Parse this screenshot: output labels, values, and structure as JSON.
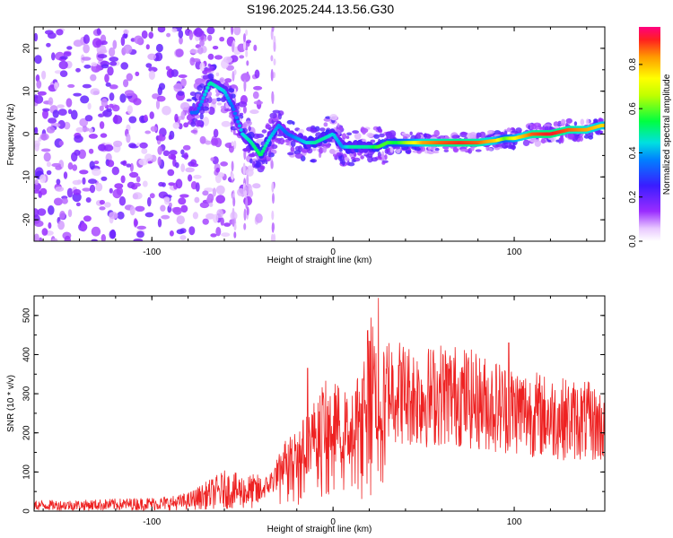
{
  "title": "S196.2025.244.13.56.G30",
  "colors": {
    "axis": "#000000",
    "snr_line": "#ee2222"
  },
  "colorbar": {
    "label": "Normalized spectral amplitude",
    "ticks": [
      "0.0",
      "0.2",
      "0.4",
      "0.6",
      "0.8"
    ],
    "tick_values": [
      0.0,
      0.2,
      0.4,
      0.6,
      0.8
    ],
    "range": [
      0.0,
      0.97
    ],
    "scale": "rainbow (violet to red)"
  },
  "chart_data": [
    {
      "type": "heatmap",
      "title": "S196.2025.244.13.56.G30",
      "xlabel": "Height of straight line (km)",
      "ylabel": "Frequency (Hz)",
      "xlim": [
        -165,
        150
      ],
      "ylim": [
        -25,
        25
      ],
      "x_ticks": [
        -100,
        0,
        100
      ],
      "x_tick_labels": [
        "-100",
        "0",
        "100"
      ],
      "y_ticks": [
        -20,
        -10,
        0,
        10,
        20
      ],
      "y_tick_labels": [
        "-20",
        "-10",
        "0",
        "10",
        "20"
      ],
      "ridge": {
        "description": "peak spectral amplitude track",
        "x": [
          -75,
          -68,
          -60,
          -55,
          -50,
          -45,
          -40,
          -35,
          -30,
          -25,
          -20,
          -15,
          -10,
          -5,
          0,
          5,
          10,
          15,
          20,
          25,
          30,
          35,
          40,
          50,
          60,
          70,
          80,
          90,
          95,
          100,
          110,
          120,
          130,
          140,
          148
        ],
        "y": [
          5,
          12,
          10,
          6,
          0,
          -2,
          -5,
          -1,
          2,
          0,
          -1,
          -2,
          -2,
          -1,
          0,
          -3,
          -3,
          -3,
          -3,
          -3,
          -2,
          -2,
          -2,
          -2,
          -2,
          -2,
          -2,
          -1.5,
          -1,
          -1,
          0,
          0,
          1,
          1,
          2
        ],
        "amplitude": [
          0.35,
          0.5,
          0.45,
          0.35,
          0.45,
          0.5,
          0.55,
          0.45,
          0.4,
          0.35,
          0.4,
          0.45,
          0.5,
          0.5,
          0.45,
          0.4,
          0.5,
          0.5,
          0.5,
          0.6,
          0.6,
          0.55,
          0.65,
          0.85,
          0.9,
          0.93,
          0.9,
          0.8,
          0.6,
          0.75,
          0.9,
          0.95,
          0.9,
          0.85,
          0.8
        ]
      }
    },
    {
      "type": "line",
      "xlabel": "Height of straight line (km)",
      "ylabel": "SNR (10 * v/v)",
      "xlim": [
        -165,
        150
      ],
      "ylim": [
        0,
        550
      ],
      "x_ticks": [
        -100,
        0,
        100
      ],
      "x_tick_labels": [
        "-100",
        "0",
        "100"
      ],
      "y_ticks": [
        0,
        100,
        200,
        300,
        400,
        500
      ],
      "y_tick_labels": [
        "0",
        "100",
        "200",
        "300",
        "400",
        "500"
      ],
      "series": [
        {
          "name": "SNR",
          "envelope_x": [
            -165,
            -140,
            -110,
            -90,
            -80,
            -70,
            -60,
            -50,
            -40,
            -35,
            -30,
            -25,
            -20,
            -15,
            -10,
            -5,
            0,
            5,
            10,
            15,
            18,
            22,
            24,
            26,
            28,
            30,
            35,
            40,
            50,
            60,
            70,
            80,
            90,
            100,
            110,
            120,
            130,
            140,
            150
          ],
          "envelope_mean": [
            15,
            15,
            18,
            20,
            25,
            40,
            55,
            50,
            50,
            70,
            100,
            140,
            150,
            170,
            200,
            230,
            230,
            220,
            200,
            270,
            310,
            360,
            300,
            240,
            290,
            320,
            310,
            300,
            290,
            300,
            295,
            280,
            270,
            260,
            250,
            240,
            235,
            230,
            215
          ],
          "notable_peaks": [
            {
              "x": 25,
              "y": 545
            },
            {
              "x": 19,
              "y": 460
            },
            {
              "x": -14,
              "y": 365
            },
            {
              "x": 97,
              "y": 430
            }
          ]
        }
      ]
    }
  ]
}
